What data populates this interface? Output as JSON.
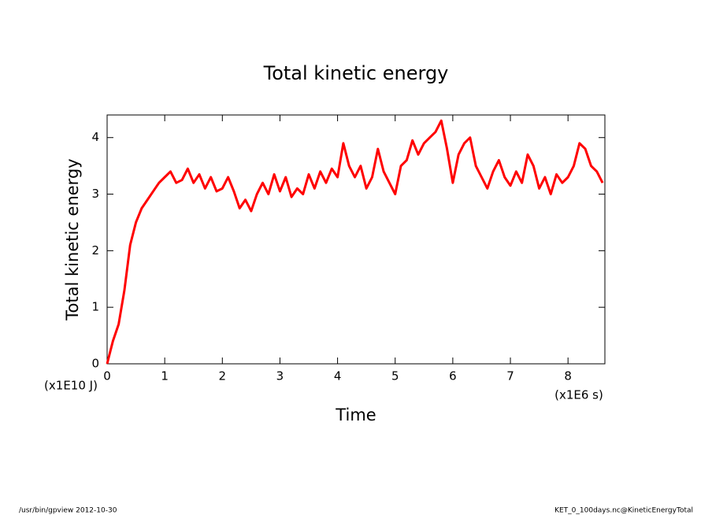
{
  "chart_data": {
    "type": "line",
    "title": "Total kinetic energy",
    "xlabel": "Time",
    "ylabel": "Total kinetic energy",
    "xunit": "(x1E6 s)",
    "yunit": "(x1E10 J)",
    "footer_left": "/usr/bin/gpview  2012-10-30",
    "footer_right": "KET_0_100days.nc@KineticEnergyTotal",
    "xlim": [
      0,
      8.64
    ],
    "ylim": [
      0,
      4.4
    ],
    "xticks": [
      0,
      1,
      2,
      3,
      4,
      5,
      6,
      7,
      8
    ],
    "yticks": [
      0,
      1,
      2,
      3,
      4
    ],
    "x": [
      0,
      0.1,
      0.2,
      0.3,
      0.4,
      0.5,
      0.6,
      0.7,
      0.8,
      0.9,
      1.0,
      1.1,
      1.2,
      1.3,
      1.4,
      1.5,
      1.6,
      1.7,
      1.8,
      1.9,
      2.0,
      2.1,
      2.2,
      2.3,
      2.4,
      2.5,
      2.6,
      2.7,
      2.8,
      2.9,
      3.0,
      3.1,
      3.2,
      3.3,
      3.4,
      3.5,
      3.6,
      3.7,
      3.8,
      3.9,
      4.0,
      4.1,
      4.2,
      4.3,
      4.4,
      4.5,
      4.6,
      4.7,
      4.8,
      4.9,
      5.0,
      5.1,
      5.2,
      5.3,
      5.4,
      5.5,
      5.6,
      5.7,
      5.8,
      5.9,
      6.0,
      6.1,
      6.2,
      6.3,
      6.4,
      6.5,
      6.6,
      6.7,
      6.8,
      6.9,
      7.0,
      7.1,
      7.2,
      7.3,
      7.4,
      7.5,
      7.6,
      7.7,
      7.8,
      7.9,
      8.0,
      8.1,
      8.2,
      8.3,
      8.4,
      8.5,
      8.6
    ],
    "series": [
      {
        "name": "Total kinetic energy",
        "color": "#ff0000",
        "values": [
          0,
          0.4,
          0.7,
          1.3,
          2.1,
          2.5,
          2.75,
          2.9,
          3.05,
          3.2,
          3.3,
          3.4,
          3.2,
          3.25,
          3.45,
          3.2,
          3.35,
          3.1,
          3.3,
          3.05,
          3.1,
          3.3,
          3.05,
          2.75,
          2.9,
          2.7,
          3.0,
          3.2,
          3.0,
          3.35,
          3.05,
          3.3,
          2.95,
          3.1,
          3.0,
          3.35,
          3.1,
          3.4,
          3.2,
          3.45,
          3.3,
          3.9,
          3.5,
          3.3,
          3.5,
          3.1,
          3.3,
          3.8,
          3.4,
          3.2,
          3.0,
          3.5,
          3.6,
          3.95,
          3.7,
          3.9,
          4.0,
          4.1,
          4.3,
          3.8,
          3.2,
          3.7,
          3.9,
          4.0,
          3.5,
          3.3,
          3.1,
          3.4,
          3.6,
          3.3,
          3.15,
          3.4,
          3.2,
          3.7,
          3.5,
          3.1,
          3.3,
          3.0,
          3.35,
          3.2,
          3.3,
          3.5,
          3.9,
          3.8,
          3.5,
          3.4,
          3.2
        ]
      }
    ]
  }
}
